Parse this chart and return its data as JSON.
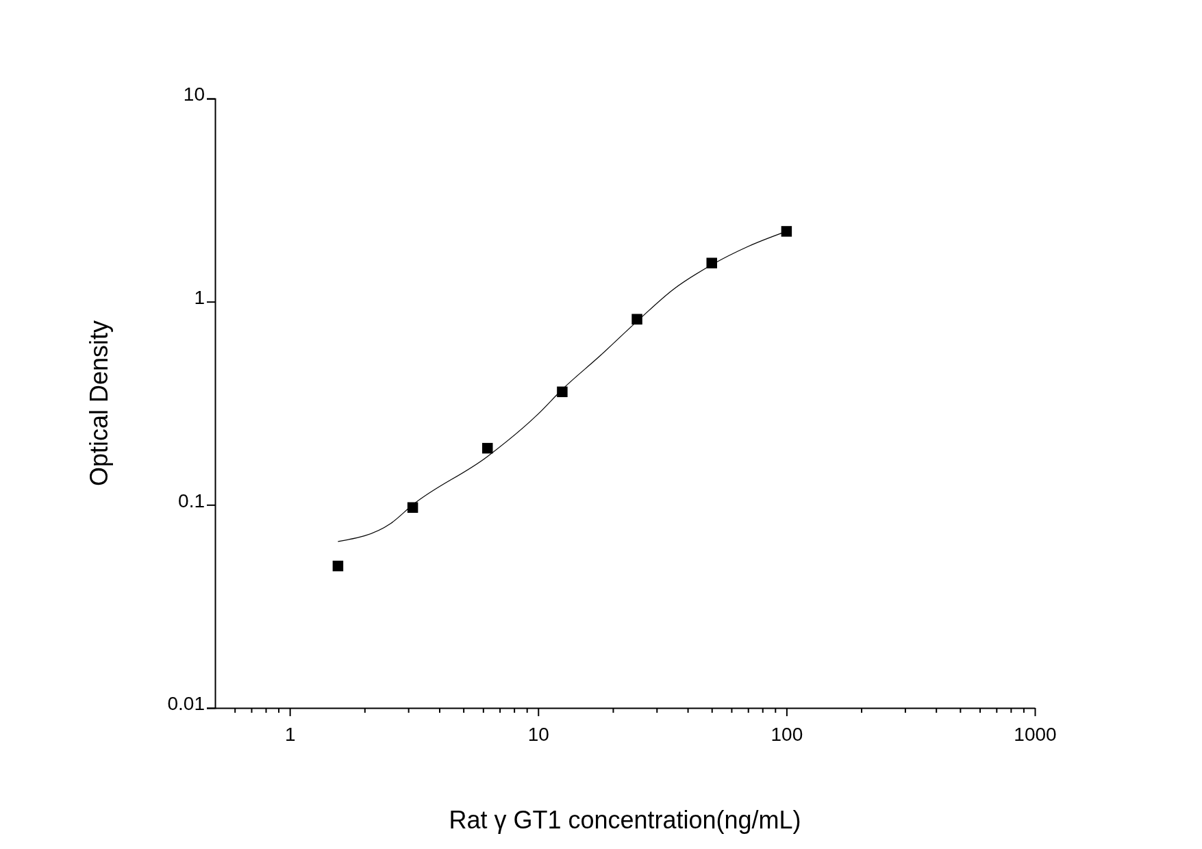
{
  "chart_data": {
    "type": "scatter",
    "xlabel": "Rat γ  GT1 concentration(ng/mL)",
    "ylabel": "Optical Density",
    "log": "xy",
    "grid": false,
    "marker": "square",
    "xlim": [
      0.5,
      1000
    ],
    "ylim": [
      0.01,
      10
    ],
    "xticks": [
      {
        "value": 0.6,
        "label": null
      },
      {
        "value": 0.7,
        "label": null
      },
      {
        "value": 0.8,
        "label": null
      },
      {
        "value": 0.9,
        "label": null
      },
      1,
      {
        "value": 2,
        "label": null
      },
      {
        "value": 3,
        "label": null
      },
      {
        "value": 4,
        "label": null
      },
      {
        "value": 5,
        "label": null
      },
      {
        "value": 6,
        "label": null
      },
      {
        "value": 7,
        "label": null
      },
      {
        "value": 8,
        "label": null
      },
      {
        "value": 9,
        "label": null
      },
      10,
      {
        "value": 20,
        "label": null
      },
      {
        "value": 30,
        "label": null
      },
      {
        "value": 40,
        "label": null
      },
      {
        "value": 50,
        "label": null
      },
      {
        "value": 60,
        "label": null
      },
      {
        "value": 70,
        "label": null
      },
      {
        "value": 80,
        "label": null
      },
      {
        "value": 90,
        "label": null
      },
      100,
      {
        "value": 200,
        "label": null
      },
      {
        "value": 300,
        "label": null
      },
      {
        "value": 400,
        "label": null
      },
      {
        "value": 500,
        "label": null
      },
      {
        "value": 600,
        "label": null
      },
      {
        "value": 700,
        "label": null
      },
      {
        "value": 800,
        "label": null
      },
      {
        "value": 900,
        "label": null
      },
      1000
    ],
    "yticks": [
      0.01,
      0.1,
      1,
      10
    ],
    "series": [
      {
        "color": "#000000",
        "x": [
          1.5625,
          3.125,
          6.25,
          12.5,
          25,
          50,
          100
        ],
        "values": [
          0.05,
          0.097,
          0.19,
          0.36,
          0.82,
          1.55,
          2.22
        ]
      },
      {
        "type": "line",
        "color": "#000000",
        "marker": "none",
        "x": [
          1.5625,
          2.55,
          3.125,
          6.25,
          10,
          12.5,
          17.7,
          25,
          35,
          50,
          70,
          100
        ],
        "values": [
          0.066,
          0.081,
          0.1,
          0.173,
          0.28,
          0.37,
          0.54,
          0.8,
          1.15,
          1.52,
          1.87,
          2.22
        ]
      }
    ]
  }
}
